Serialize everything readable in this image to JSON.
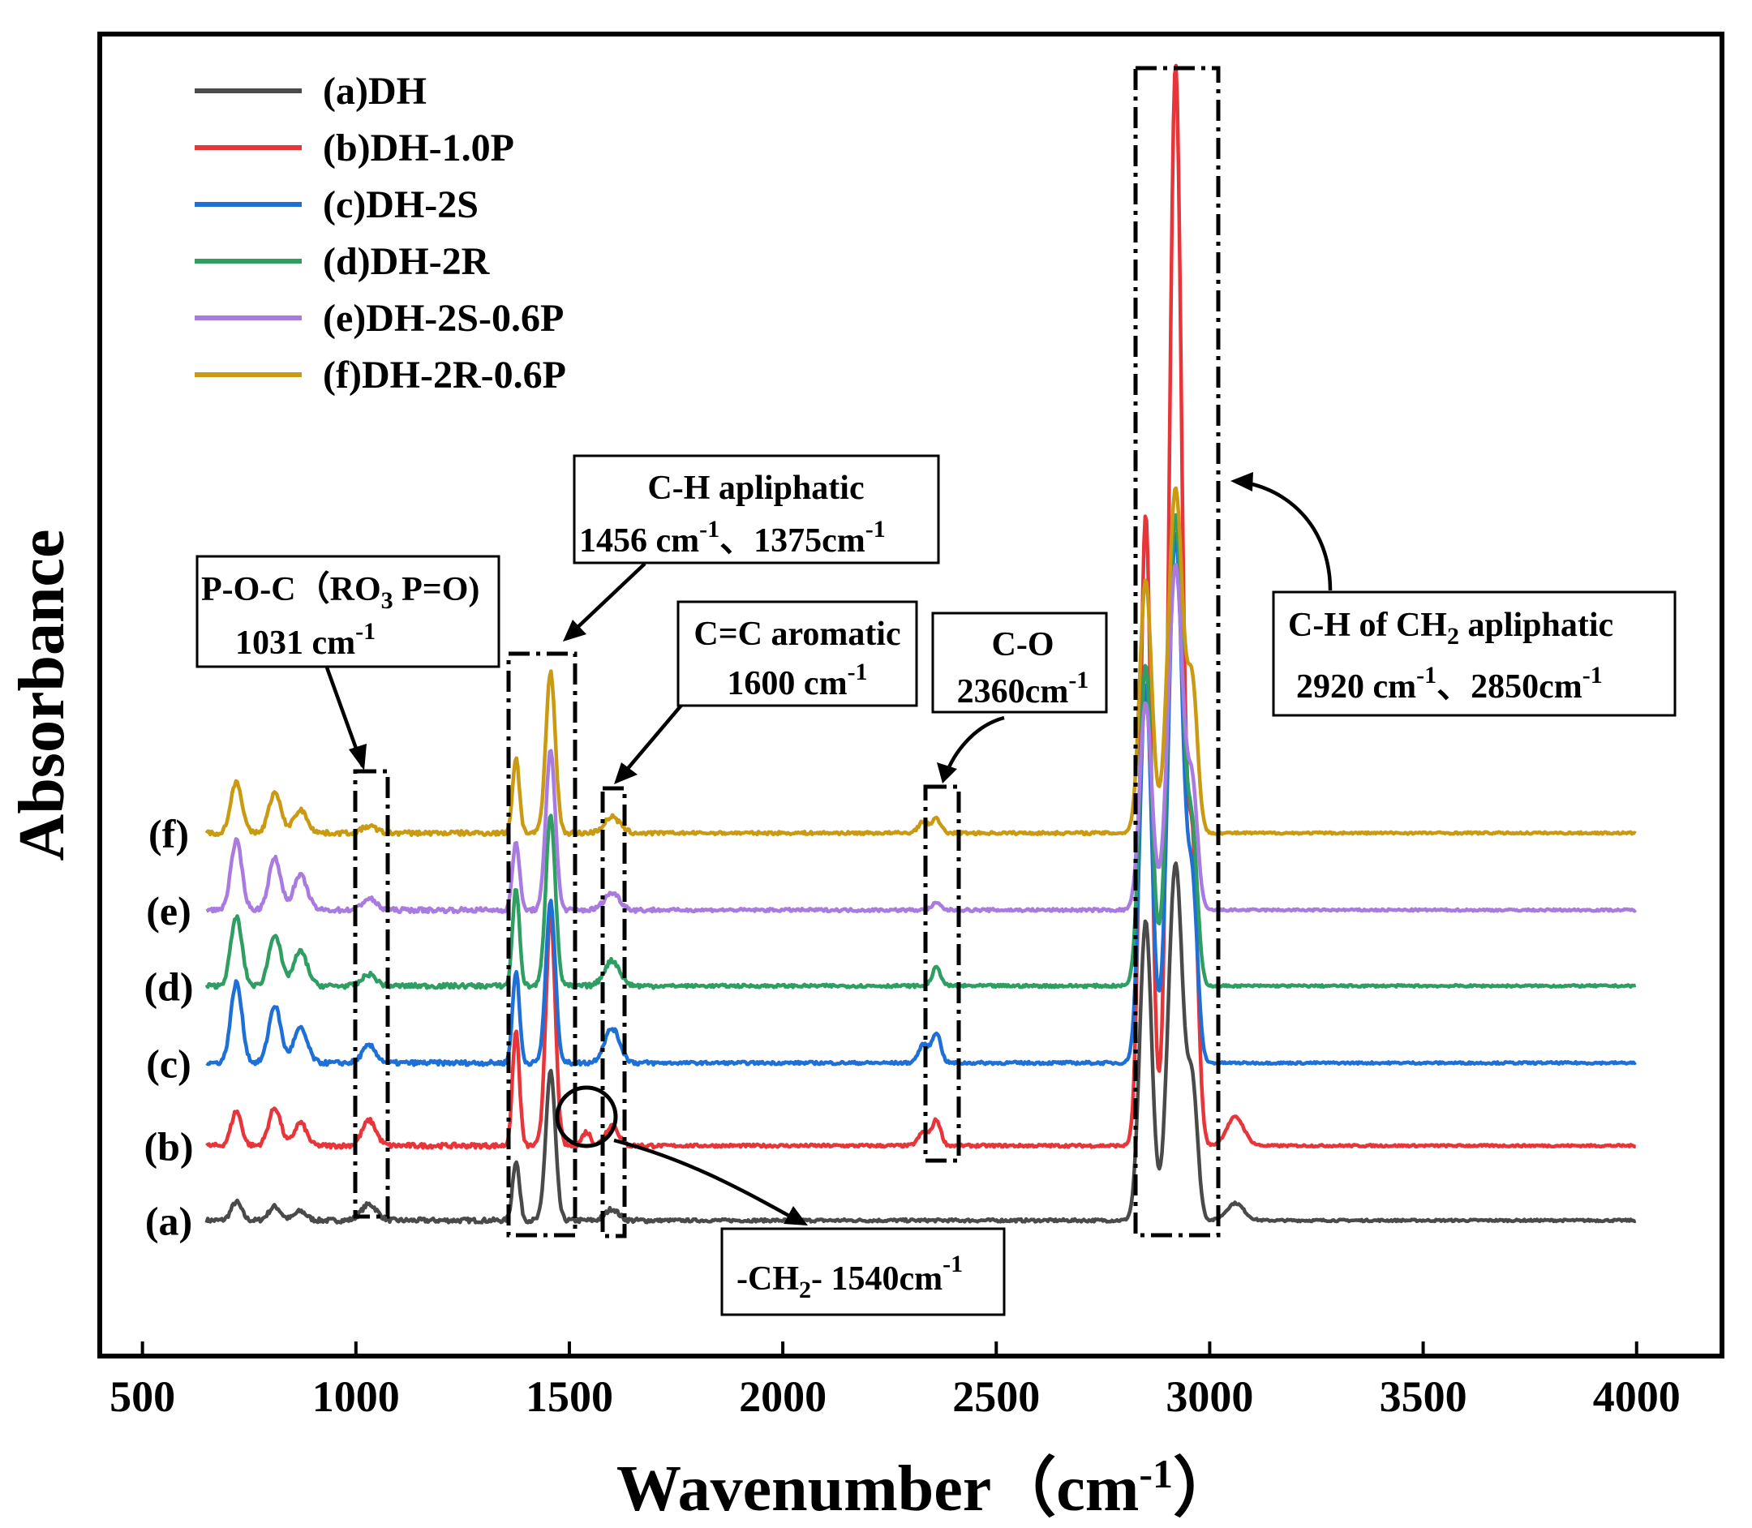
{
  "chart_data": {
    "type": "line",
    "title": "",
    "xlabel": "Wavenumber（cm⁻¹）",
    "xlabel_parts": {
      "main": "Wavenumber（cm",
      "sup": "-1",
      "close": "）"
    },
    "ylabel": "Absorbance",
    "xlim": [
      400,
      4200
    ],
    "ylim": [
      0,
      1.15
    ],
    "xticks": [
      500,
      1000,
      1500,
      2000,
      2500,
      3000,
      3500,
      4000
    ],
    "yticks_shown": false,
    "legend_location": "top-left",
    "series": [
      {
        "key": "a",
        "name": "(a)DH",
        "label": "(a)",
        "color": "#4a4a4a",
        "baseline": 0.118,
        "peaks": [
          [
            720,
            0.016,
            12
          ],
          [
            810,
            0.012,
            14
          ],
          [
            870,
            0.008,
            14
          ],
          [
            1031,
            0.014,
            18
          ],
          [
            1375,
            0.052,
            8
          ],
          [
            1456,
            0.13,
            11
          ],
          [
            1600,
            0.01,
            15
          ],
          [
            2850,
            0.26,
            14
          ],
          [
            2920,
            0.31,
            17
          ],
          [
            2960,
            0.11,
            12
          ],
          [
            3060,
            0.015,
            20
          ]
        ]
      },
      {
        "key": "b",
        "name": "(b)DH-1.0P",
        "label": "(b)",
        "color": "#e8353a",
        "baseline": 0.183,
        "peaks": [
          [
            720,
            0.03,
            12
          ],
          [
            810,
            0.033,
            14
          ],
          [
            870,
            0.02,
            14
          ],
          [
            1031,
            0.022,
            16
          ],
          [
            1375,
            0.1,
            8
          ],
          [
            1456,
            0.2,
            11
          ],
          [
            1540,
            0.012,
            10
          ],
          [
            1600,
            0.018,
            15
          ],
          [
            2330,
            0.012,
            12
          ],
          [
            2360,
            0.022,
            10
          ],
          [
            2850,
            0.55,
            13
          ],
          [
            2920,
            0.94,
            15
          ],
          [
            2960,
            0.25,
            12
          ],
          [
            3060,
            0.025,
            20
          ]
        ]
      },
      {
        "key": "c",
        "name": "(c)DH-2S",
        "label": "(c)",
        "color": "#1e6fd6",
        "baseline": 0.255,
        "peaks": [
          [
            720,
            0.07,
            13
          ],
          [
            810,
            0.05,
            14
          ],
          [
            870,
            0.03,
            16
          ],
          [
            1031,
            0.015,
            16
          ],
          [
            1375,
            0.08,
            8
          ],
          [
            1456,
            0.14,
            11
          ],
          [
            1600,
            0.03,
            18
          ],
          [
            2330,
            0.016,
            12
          ],
          [
            2360,
            0.026,
            10
          ],
          [
            2850,
            0.33,
            14
          ],
          [
            2920,
            0.46,
            17
          ],
          [
            2960,
            0.14,
            12
          ]
        ]
      },
      {
        "key": "d",
        "name": "(d)DH-2R",
        "label": "(d)",
        "color": "#2f9e63",
        "baseline": 0.322,
        "peaks": [
          [
            720,
            0.06,
            13
          ],
          [
            810,
            0.045,
            14
          ],
          [
            870,
            0.03,
            16
          ],
          [
            1031,
            0.01,
            16
          ],
          [
            1375,
            0.085,
            8
          ],
          [
            1456,
            0.15,
            11
          ],
          [
            1600,
            0.022,
            18
          ],
          [
            2360,
            0.016,
            10
          ],
          [
            2850,
            0.28,
            14
          ],
          [
            2920,
            0.41,
            17
          ],
          [
            2960,
            0.12,
            12
          ]
        ]
      },
      {
        "key": "e",
        "name": "(e)DH-2S-0.6P",
        "label": "(e)",
        "color": "#a97be0",
        "baseline": 0.388,
        "peaks": [
          [
            720,
            0.06,
            13
          ],
          [
            810,
            0.045,
            14
          ],
          [
            870,
            0.03,
            16
          ],
          [
            1031,
            0.01,
            16
          ],
          [
            1375,
            0.06,
            8
          ],
          [
            1456,
            0.14,
            11
          ],
          [
            1600,
            0.015,
            18
          ],
          [
            2360,
            0.006,
            10
          ],
          [
            2850,
            0.18,
            14
          ],
          [
            2920,
            0.3,
            17
          ],
          [
            2960,
            0.1,
            12
          ]
        ]
      },
      {
        "key": "f",
        "name": "(f)DH-2R-0.6P",
        "label": "(f)",
        "color": "#c99a12",
        "baseline": 0.455,
        "peaks": [
          [
            720,
            0.045,
            13
          ],
          [
            810,
            0.035,
            14
          ],
          [
            870,
            0.02,
            16
          ],
          [
            1031,
            0.006,
            16
          ],
          [
            1375,
            0.065,
            8
          ],
          [
            1456,
            0.14,
            11
          ],
          [
            1600,
            0.014,
            18
          ],
          [
            2330,
            0.01,
            12
          ],
          [
            2360,
            0.012,
            10
          ],
          [
            2850,
            0.22,
            14
          ],
          [
            2920,
            0.3,
            17
          ],
          [
            2960,
            0.12,
            12
          ]
        ]
      }
    ],
    "annotations": [
      {
        "key": "poc",
        "lines": [
          "P-O-C（RO₃ P=O)",
          "1031 cm⁻¹"
        ],
        "line1_main": "P-O-C（RO",
        "line1_sub": "3",
        "line1_tail": " P=O)",
        "line2_main": "1031 cm",
        "line2_sup": "-1",
        "region": [
          1000,
          1075
        ]
      },
      {
        "key": "ch_al",
        "title": "C-H apliphatic",
        "line2_a": "1456 cm",
        "line2_a_sup": "-1",
        "line2_b": "、1375cm",
        "line2_b_sup": "-1",
        "region": [
          1355,
          1510
        ]
      },
      {
        "key": "cc",
        "title": "C=C aromatic",
        "line2_main": "1600 cm",
        "line2_sup": "-1",
        "region": [
          1568,
          1620
        ]
      },
      {
        "key": "co",
        "title": "C-O",
        "line2_main": "2360cm",
        "line2_sup": "-1",
        "region": [
          2320,
          2400
        ]
      },
      {
        "key": "ch2",
        "title_main": "C-H of CH",
        "title_sub": "2",
        "title_tail": " apliphatic",
        "line2_a": "2920 cm",
        "line2_a_sup": "-1",
        "line2_b": "、2850cm",
        "line2_b_sup": "-1",
        "region": [
          2810,
          3005
        ]
      },
      {
        "key": "ch2_1540",
        "text_main": "-CH",
        "text_sub": "2",
        "text_tail": "- 1540cm",
        "text_sup": "-1",
        "at": 1540
      }
    ]
  }
}
